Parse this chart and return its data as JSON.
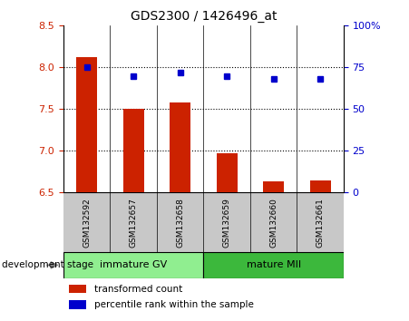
{
  "title": "GDS2300 / 1426496_at",
  "samples": [
    "GSM132592",
    "GSM132657",
    "GSM132658",
    "GSM132659",
    "GSM132660",
    "GSM132661"
  ],
  "transformed_count": [
    8.12,
    7.5,
    7.58,
    6.97,
    6.63,
    6.65
  ],
  "percentile_rank": [
    75,
    70,
    72,
    70,
    68,
    68
  ],
  "bar_base": 6.5,
  "ylim_left": [
    6.5,
    8.5
  ],
  "ylim_right": [
    0,
    100
  ],
  "yticks_left": [
    6.5,
    7.0,
    7.5,
    8.0,
    8.5
  ],
  "yticks_right": [
    0,
    25,
    50,
    75,
    100
  ],
  "ytick_labels_right": [
    "0",
    "25",
    "50",
    "75",
    "100%"
  ],
  "grid_yticks": [
    7.0,
    7.5,
    8.0
  ],
  "groups": [
    {
      "label": "immature GV",
      "start": 0,
      "end": 3,
      "color": "#90EE90"
    },
    {
      "label": "mature MII",
      "start": 3,
      "end": 6,
      "color": "#3CB83C"
    }
  ],
  "group_label_prefix": "development stage",
  "bar_color": "#CC2200",
  "dot_color": "#0000CC",
  "bar_width": 0.45,
  "sample_box_color": "#C8C8C8",
  "legend_bar_label": "transformed count",
  "legend_dot_label": "percentile rank within the sample",
  "left_tick_color": "#CC2200",
  "right_tick_color": "#0000CC"
}
